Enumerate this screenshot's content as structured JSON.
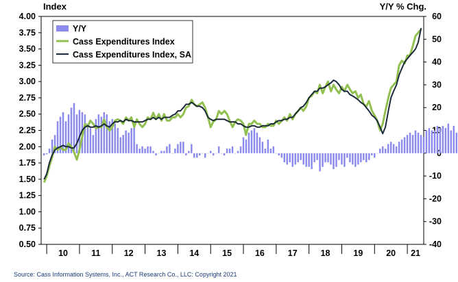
{
  "chart_data": {
    "type": "bar+line",
    "left_axis_label": "Index",
    "right_axis_label": "Y/Y % Chg.",
    "source": "Source: Cass Information Systems, Inc., ACT Research Co., LLC: Copyright 2021",
    "left_ylim": [
      0.5,
      4.0
    ],
    "left_ticks": [
      "4.00",
      "3.75",
      "3.50",
      "3.25",
      "3.00",
      "2.75",
      "2.50",
      "2.25",
      "2.00",
      "1.75",
      "1.50",
      "1.25",
      "1.00",
      "0.75",
      "0.50"
    ],
    "right_ylim": [
      -40,
      60
    ],
    "right_ticks": [
      "60",
      "50",
      "40",
      "30",
      "20",
      "10",
      "0",
      "-10",
      "-20",
      "-30",
      "-40"
    ],
    "x_range": [
      2009.83,
      2021.5
    ],
    "year_labels": [
      "10",
      "11",
      "12",
      "13",
      "14",
      "15",
      "16",
      "17",
      "18",
      "19",
      "20",
      "21"
    ],
    "legend_position": "top-left",
    "colors": {
      "yoy": "#8b8bee",
      "nsa": "#92c050",
      "sa": "#1b2a3a"
    },
    "series": [
      {
        "name": "Y/Y",
        "kind": "bar",
        "axis": "right",
        "start": 2009.9167,
        "step": 0.08333,
        "values": [
          -1,
          -0.5,
          2,
          6,
          8,
          14,
          16,
          18,
          14,
          17,
          20,
          22,
          17,
          19,
          18,
          17,
          13,
          11,
          8,
          15,
          17,
          16,
          18,
          17,
          14,
          15,
          13,
          11,
          7,
          8,
          10,
          9,
          11,
          14,
          4,
          2,
          3,
          2,
          3,
          3,
          1,
          -1,
          0,
          1,
          1,
          3,
          4,
          0,
          2,
          4,
          5,
          5,
          -1,
          1,
          4,
          -2,
          -2,
          -1,
          0,
          -2,
          0,
          1,
          -1,
          0,
          3,
          0,
          -1,
          2,
          2,
          3,
          0,
          1,
          3,
          7,
          6,
          9,
          10,
          11,
          9,
          7,
          5,
          2,
          6,
          2,
          3,
          0,
          -1,
          -2,
          -4,
          -5,
          -4,
          -6,
          -5,
          -4,
          -3,
          -5,
          -6,
          -6,
          -7,
          -4,
          -3,
          -8,
          -6,
          -4,
          -4,
          -5,
          -7,
          -6,
          -3,
          -5,
          -6,
          -2,
          -4,
          -5,
          -6,
          -5,
          -4,
          -3,
          -4,
          -3,
          -1,
          -2,
          0,
          2,
          3,
          2,
          4,
          5,
          4,
          3,
          5,
          6,
          7,
          8,
          9,
          8,
          10,
          9,
          8,
          7,
          10,
          11,
          10,
          10,
          12,
          11,
          12,
          11,
          13,
          10,
          12,
          9,
          7,
          8,
          9,
          8,
          5,
          6,
          4,
          5,
          5,
          -1,
          -2,
          0,
          -3,
          -3,
          -4,
          -4,
          -3,
          -4,
          -3,
          -5,
          -6,
          -8,
          -14,
          -12,
          -15,
          -17,
          -13,
          -8,
          -5,
          -3,
          -1,
          0,
          3,
          8,
          12,
          9,
          14,
          18,
          32,
          36,
          44,
          38,
          50,
          42,
          32,
          28,
          30
        ],
        "tick_labels": []
      },
      {
        "name": "Cass Expenditures Index",
        "kind": "line",
        "axis": "left",
        "x": [
          2009.92,
          2010.0,
          2010.08,
          2010.17,
          2010.25,
          2010.33,
          2010.42,
          2010.5,
          2010.58,
          2010.67,
          2010.75,
          2010.83,
          2010.92,
          2011.0,
          2011.08,
          2011.17,
          2011.25,
          2011.33,
          2011.42,
          2011.5,
          2011.58,
          2011.67,
          2011.75,
          2011.83,
          2011.92,
          2012.0,
          2012.08,
          2012.17,
          2012.25,
          2012.33,
          2012.42,
          2012.5,
          2012.58,
          2012.67,
          2012.75,
          2012.83,
          2012.92,
          2013.0,
          2013.08,
          2013.17,
          2013.25,
          2013.33,
          2013.42,
          2013.5,
          2013.58,
          2013.67,
          2013.75,
          2013.83,
          2013.92,
          2014.0,
          2014.08,
          2014.17,
          2014.25,
          2014.33,
          2014.42,
          2014.5,
          2014.58,
          2014.67,
          2014.75,
          2014.83,
          2014.92,
          2015.0,
          2015.08,
          2015.17,
          2015.25,
          2015.33,
          2015.42,
          2015.5,
          2015.58,
          2015.67,
          2015.75,
          2015.83,
          2015.92,
          2016.0,
          2016.08,
          2016.17,
          2016.25,
          2016.33,
          2016.42,
          2016.5,
          2016.58,
          2016.67,
          2016.75,
          2016.83,
          2016.92,
          2017.0,
          2017.08,
          2017.17,
          2017.25,
          2017.33,
          2017.42,
          2017.5,
          2017.58,
          2017.67,
          2017.75,
          2017.83,
          2017.92,
          2018.0,
          2018.08,
          2018.17,
          2018.25,
          2018.33,
          2018.42,
          2018.5,
          2018.58,
          2018.67,
          2018.75,
          2018.83,
          2018.92,
          2019.0,
          2019.08,
          2019.17,
          2019.25,
          2019.33,
          2019.42,
          2019.5,
          2019.58,
          2019.67,
          2019.75,
          2019.83,
          2019.92,
          2020.0,
          2020.08,
          2020.17,
          2020.25,
          2020.33,
          2020.42,
          2020.5,
          2020.58,
          2020.67,
          2020.75,
          2020.83,
          2020.92,
          2021.0,
          2021.08,
          2021.17,
          2021.25,
          2021.33,
          2021.42
        ],
        "values": [
          1.45,
          1.55,
          1.7,
          1.85,
          2.0,
          1.95,
          2.0,
          1.95,
          1.95,
          2.05,
          2.0,
          1.92,
          1.8,
          1.95,
          2.15,
          2.35,
          2.3,
          2.4,
          2.35,
          2.28,
          2.3,
          2.3,
          2.42,
          2.3,
          2.25,
          2.3,
          2.4,
          2.42,
          2.4,
          2.35,
          2.45,
          2.4,
          2.45,
          2.3,
          2.42,
          2.35,
          2.3,
          2.35,
          2.45,
          2.42,
          2.52,
          2.42,
          2.5,
          2.4,
          2.5,
          2.4,
          2.4,
          2.45,
          2.45,
          2.5,
          2.45,
          2.5,
          2.6,
          2.62,
          2.72,
          2.65,
          2.62,
          2.65,
          2.68,
          2.6,
          2.45,
          2.3,
          2.38,
          2.42,
          2.55,
          2.5,
          2.55,
          2.5,
          2.4,
          2.3,
          2.38,
          2.42,
          2.4,
          2.35,
          2.18,
          2.35,
          2.35,
          2.4,
          2.35,
          2.35,
          2.3,
          2.3,
          2.35,
          2.32,
          2.32,
          2.4,
          2.35,
          2.4,
          2.45,
          2.4,
          2.5,
          2.42,
          2.5,
          2.55,
          2.6,
          2.55,
          2.62,
          2.75,
          2.78,
          2.85,
          2.82,
          2.95,
          2.82,
          2.92,
          3.0,
          2.85,
          2.95,
          2.88,
          2.82,
          2.92,
          2.85,
          2.95,
          2.88,
          2.82,
          2.85,
          2.75,
          2.8,
          2.65,
          2.62,
          2.7,
          2.55,
          2.48,
          2.4,
          2.25,
          2.35,
          2.55,
          2.75,
          2.9,
          2.95,
          3.0,
          3.25,
          3.32,
          3.28,
          3.4,
          3.4,
          3.55,
          3.7,
          3.75,
          3.8
        ],
        "tick_labels": []
      },
      {
        "name": "Cass Expenditures Index, SA",
        "kind": "line",
        "axis": "left",
        "x": [
          2009.92,
          2010.0,
          2010.08,
          2010.17,
          2010.25,
          2010.33,
          2010.42,
          2010.5,
          2010.58,
          2010.67,
          2010.75,
          2010.83,
          2010.92,
          2011.0,
          2011.08,
          2011.17,
          2011.25,
          2011.33,
          2011.42,
          2011.5,
          2011.58,
          2011.67,
          2011.75,
          2011.83,
          2011.92,
          2012.0,
          2012.08,
          2012.17,
          2012.25,
          2012.33,
          2012.42,
          2012.5,
          2012.58,
          2012.67,
          2012.75,
          2012.83,
          2012.92,
          2013.0,
          2013.08,
          2013.17,
          2013.25,
          2013.33,
          2013.42,
          2013.5,
          2013.58,
          2013.67,
          2013.75,
          2013.83,
          2013.92,
          2014.0,
          2014.08,
          2014.17,
          2014.25,
          2014.33,
          2014.42,
          2014.5,
          2014.58,
          2014.67,
          2014.75,
          2014.83,
          2014.92,
          2015.0,
          2015.08,
          2015.17,
          2015.25,
          2015.33,
          2015.42,
          2015.5,
          2015.58,
          2015.67,
          2015.75,
          2015.83,
          2015.92,
          2016.0,
          2016.08,
          2016.17,
          2016.25,
          2016.33,
          2016.42,
          2016.5,
          2016.58,
          2016.67,
          2016.75,
          2016.83,
          2016.92,
          2017.0,
          2017.08,
          2017.17,
          2017.25,
          2017.33,
          2017.42,
          2017.5,
          2017.58,
          2017.67,
          2017.75,
          2017.83,
          2017.92,
          2018.0,
          2018.08,
          2018.17,
          2018.25,
          2018.33,
          2018.42,
          2018.5,
          2018.58,
          2018.67,
          2018.75,
          2018.83,
          2018.92,
          2019.0,
          2019.08,
          2019.17,
          2019.25,
          2019.33,
          2019.42,
          2019.5,
          2019.58,
          2019.67,
          2019.75,
          2019.83,
          2019.92,
          2020.0,
          2020.08,
          2020.17,
          2020.25,
          2020.33,
          2020.42,
          2020.5,
          2020.58,
          2020.67,
          2020.75,
          2020.83,
          2020.92,
          2021.0,
          2021.08,
          2021.17,
          2021.25,
          2021.33,
          2021.42
        ],
        "values": [
          1.5,
          1.58,
          1.75,
          1.88,
          1.95,
          1.98,
          2.0,
          2.02,
          2.0,
          2.0,
          1.98,
          1.98,
          2.05,
          2.15,
          2.25,
          2.3,
          2.32,
          2.3,
          2.3,
          2.32,
          2.3,
          2.32,
          2.35,
          2.32,
          2.3,
          2.35,
          2.38,
          2.38,
          2.4,
          2.38,
          2.42,
          2.4,
          2.4,
          2.38,
          2.38,
          2.38,
          2.38,
          2.4,
          2.42,
          2.42,
          2.45,
          2.42,
          2.45,
          2.42,
          2.45,
          2.45,
          2.45,
          2.48,
          2.5,
          2.55,
          2.55,
          2.6,
          2.65,
          2.65,
          2.68,
          2.65,
          2.62,
          2.62,
          2.6,
          2.55,
          2.45,
          2.42,
          2.4,
          2.42,
          2.42,
          2.42,
          2.42,
          2.4,
          2.38,
          2.38,
          2.38,
          2.35,
          2.35,
          2.32,
          2.3,
          2.3,
          2.32,
          2.32,
          2.3,
          2.3,
          2.32,
          2.32,
          2.32,
          2.35,
          2.35,
          2.38,
          2.4,
          2.4,
          2.42,
          2.42,
          2.45,
          2.45,
          2.5,
          2.55,
          2.6,
          2.62,
          2.68,
          2.75,
          2.8,
          2.85,
          2.85,
          2.9,
          2.9,
          2.92,
          2.95,
          2.98,
          3.02,
          3.0,
          2.95,
          2.88,
          2.85,
          2.85,
          2.8,
          2.78,
          2.75,
          2.72,
          2.68,
          2.65,
          2.6,
          2.55,
          2.48,
          2.45,
          2.4,
          2.3,
          2.2,
          2.3,
          2.55,
          2.75,
          2.85,
          2.95,
          3.1,
          3.2,
          3.3,
          3.35,
          3.4,
          3.45,
          3.5,
          3.6,
          3.82
        ],
        "tick_labels": []
      }
    ]
  }
}
